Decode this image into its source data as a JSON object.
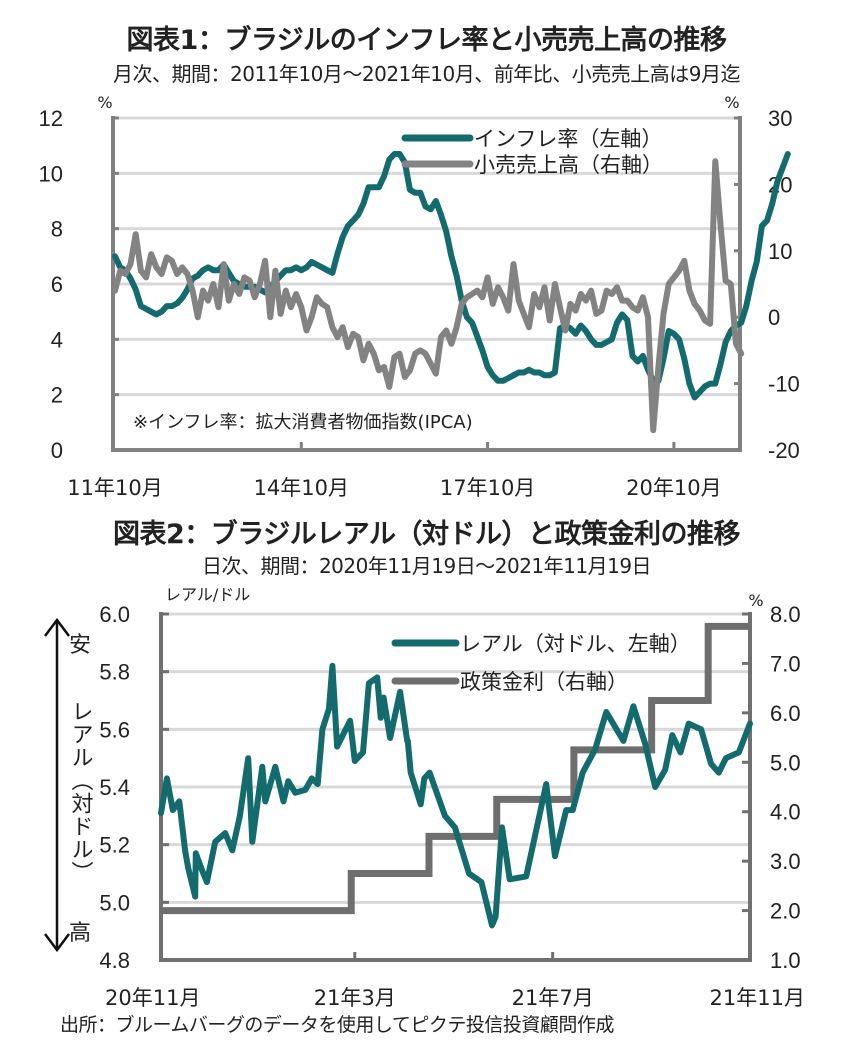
{
  "chart_data": [
    {
      "type": "line",
      "title": "図表1：ブラジルのインフレ率と小売売上高の推移",
      "subtitle": "月次、期間：2011年10月～2021年10月、前年比、小売売上高は9月迄",
      "left_unit": "%",
      "right_unit": "%",
      "ylim_left": [
        0,
        12
      ],
      "yticks_left": [
        "0",
        "2",
        "4",
        "6",
        "8",
        "10",
        "12"
      ],
      "ylim_right": [
        -20,
        30
      ],
      "yticks_right": [
        "-20",
        "-10",
        "0",
        "10",
        "20",
        "30"
      ],
      "xticks": [
        "11年10月",
        "14年10月",
        "17年10月",
        "20年10月"
      ],
      "x_start": "2011-10",
      "x_end": "2021-10",
      "grid": true,
      "legend_position": "top-right",
      "note": "※インフレ率：拡大消費者物価指数(IPCA)",
      "series": [
        {
          "name": "インフレ率（左軸）",
          "axis": "left",
          "color": "#136b6d",
          "values": [
            7.0,
            6.6,
            6.5,
            6.2,
            5.8,
            5.2,
            5.1,
            5.0,
            4.9,
            5.0,
            5.2,
            5.2,
            5.3,
            5.5,
            5.8,
            6.2,
            6.3,
            6.5,
            6.6,
            6.5,
            6.5,
            6.7,
            6.4,
            6.1,
            6.0,
            5.9,
            5.9,
            5.9,
            5.8,
            5.7,
            5.9,
            6.1,
            6.3,
            6.5,
            6.5,
            6.6,
            6.5,
            6.6,
            6.8,
            6.7,
            6.6,
            6.5,
            6.4,
            7.1,
            7.7,
            8.1,
            8.3,
            8.5,
            8.9,
            9.5,
            9.5,
            9.5,
            9.9,
            10.5,
            10.7,
            10.7,
            10.4,
            9.4,
            9.3,
            9.3,
            8.8,
            8.7,
            9.0,
            8.5,
            7.9,
            7.0,
            6.3,
            5.4,
            4.8,
            4.6,
            4.1,
            3.6,
            3.0,
            2.7,
            2.5,
            2.5,
            2.6,
            2.7,
            2.8,
            2.8,
            2.9,
            2.8,
            2.8,
            2.7,
            2.7,
            2.8,
            4.4,
            4.5,
            4.4,
            4.2,
            4.5,
            4.3,
            4.0,
            3.8,
            3.8,
            3.9,
            4.0,
            4.6,
            4.9,
            4.7,
            3.4,
            3.2,
            3.4,
            2.9,
            2.5,
            2.5,
            3.3,
            4.3,
            4.2,
            4.0,
            3.3,
            2.4,
            1.9,
            2.1,
            2.3,
            2.4,
            2.4,
            3.1,
            3.9,
            4.3,
            4.5,
            4.6,
            5.2,
            6.1,
            6.8,
            8.1,
            8.3,
            8.9,
            9.7,
            10.2,
            10.7
          ]
        },
        {
          "name": "小売売上高（右軸）",
          "axis": "right",
          "color": "#838383",
          "values": [
            4.0,
            7.0,
            6.5,
            8.0,
            12.5,
            7.0,
            6.0,
            9.5,
            7.5,
            6.5,
            9.0,
            8.5,
            6.5,
            7.5,
            6.5,
            4.0,
            0.0,
            4.0,
            2.5,
            5.0,
            1.5,
            8.0,
            2.5,
            5.0,
            3.5,
            6.0,
            5.5,
            3.0,
            5.0,
            8.5,
            0.0,
            7.0,
            0.5,
            4.0,
            1.5,
            3.5,
            1.5,
            -2.0,
            0.0,
            3.0,
            2.0,
            1.5,
            -1.5,
            -3.0,
            -1.5,
            -4.5,
            -2.5,
            -3.0,
            -6.5,
            -4.0,
            -5.5,
            -8.0,
            -7.5,
            -10.5,
            -6.0,
            -5.5,
            -9.0,
            -8.0,
            -5.5,
            -5.0,
            -5.5,
            -7.0,
            -8.5,
            -3.0,
            -2.0,
            -4.0,
            -1.5,
            2.0,
            3.0,
            3.5,
            4.0,
            3.0,
            6.0,
            2.0,
            4.5,
            3.0,
            1.0,
            8.0,
            2.5,
            0.5,
            -1.5,
            3.5,
            1.5,
            4.5,
            -0.5,
            5.0,
            1.5,
            -2.0,
            2.0,
            1.0,
            3.5,
            2.5,
            4.0,
            0.5,
            1.0,
            4.0,
            3.5,
            4.5,
            2.5,
            2.5,
            1.5,
            1.0,
            3.0,
            0.0,
            -17.0,
            -7.5,
            0.5,
            5.0,
            6.0,
            7.0,
            8.5,
            4.0,
            2.0,
            1.0,
            -0.5,
            -1.0,
            23.5,
            14.0,
            5.5,
            5.0,
            -4.0,
            -5.5
          ]
        }
      ]
    },
    {
      "type": "line",
      "title": "図表2：ブラジルレアル（対ドル）と政策金利の推移",
      "subtitle": "日次、期間：2020年11月19日～2021年11月19日",
      "left_unit": "レアル/ドル",
      "right_unit": "%",
      "ylim_left": [
        4.8,
        6.0
      ],
      "yticks_left": [
        "4.8",
        "5.0",
        "5.2",
        "5.4",
        "5.6",
        "5.8",
        "6.0"
      ],
      "ylim_right": [
        1.0,
        8.0
      ],
      "yticks_right": [
        "1.0",
        "2.0",
        "3.0",
        "4.0",
        "5.0",
        "6.0",
        "7.0",
        "8.0"
      ],
      "xticks": [
        "20年11月",
        "21年3月",
        "21年7月",
        "21年11月"
      ],
      "x_start": "2020-11-19",
      "x_end": "2021-11-19",
      "grid": true,
      "legend_position": "top-right",
      "left_axis_annotation": {
        "top": "安",
        "label": "レアル（対ドル）",
        "bottom": "高"
      },
      "series": [
        {
          "name": "レアル（対ドル、左軸）",
          "axis": "left",
          "color": "#136b6d",
          "points_t": [
            0.0,
            0.01,
            0.02,
            0.031,
            0.041,
            0.046,
            0.058,
            0.059,
            0.07,
            0.078,
            0.092,
            0.109,
            0.121,
            0.134,
            0.148,
            0.155,
            0.172,
            0.177,
            0.194,
            0.208,
            0.216,
            0.228,
            0.245,
            0.256,
            0.266,
            0.274,
            0.285,
            0.291,
            0.299,
            0.321,
            0.329,
            0.343,
            0.353,
            0.367,
            0.373,
            0.378,
            0.389,
            0.406,
            0.418,
            0.419,
            0.424,
            0.441,
            0.447,
            0.456,
            0.482,
            0.499,
            0.523,
            0.544,
            0.562,
            0.568,
            0.579,
            0.592,
            0.62,
            0.654,
            0.669,
            0.688,
            0.699,
            0.716,
            0.737,
            0.756,
            0.785,
            0.802,
            0.822,
            0.839,
            0.856,
            0.868,
            0.882,
            0.896,
            0.917,
            0.934,
            0.947,
            0.959,
            0.981,
            1.0
          ],
          "values": [
            5.31,
            5.43,
            5.32,
            5.35,
            5.18,
            5.12,
            5.02,
            5.17,
            5.11,
            5.07,
            5.21,
            5.24,
            5.18,
            5.3,
            5.5,
            5.21,
            5.47,
            5.35,
            5.47,
            5.35,
            5.42,
            5.38,
            5.39,
            5.43,
            5.41,
            5.6,
            5.67,
            5.82,
            5.54,
            5.63,
            5.49,
            5.52,
            5.76,
            5.78,
            5.64,
            5.71,
            5.57,
            5.73,
            5.56,
            5.56,
            5.45,
            5.34,
            5.43,
            5.45,
            5.3,
            5.26,
            5.1,
            5.07,
            4.92,
            4.95,
            5.26,
            5.08,
            5.09,
            5.41,
            5.16,
            5.32,
            5.32,
            5.45,
            5.53,
            5.66,
            5.56,
            5.68,
            5.55,
            5.4,
            5.46,
            5.58,
            5.52,
            5.62,
            5.6,
            5.48,
            5.45,
            5.5,
            5.52,
            5.62
          ]
        },
        {
          "name": "政策金利（右軸）",
          "axis": "right",
          "color": "#6e6e6e",
          "steps": [
            {
              "from": "2020-11-19",
              "value": 2.0
            },
            {
              "from": "2021-03-17",
              "value": 2.75
            },
            {
              "from": "2021-05-05",
              "value": 3.5
            },
            {
              "from": "2021-06-16",
              "value": 4.25
            },
            {
              "from": "2021-08-04",
              "value": 5.25
            },
            {
              "from": "2021-09-22",
              "value": 6.25
            },
            {
              "from": "2021-10-27",
              "value": 7.75
            }
          ],
          "steps_t": [
            0.0,
            0.323,
            0.455,
            0.57,
            0.701,
            0.833,
            0.929
          ]
        }
      ]
    }
  ],
  "source": "出所：ブルームバーグのデータを使用してピクテ投信投資顧問作成"
}
